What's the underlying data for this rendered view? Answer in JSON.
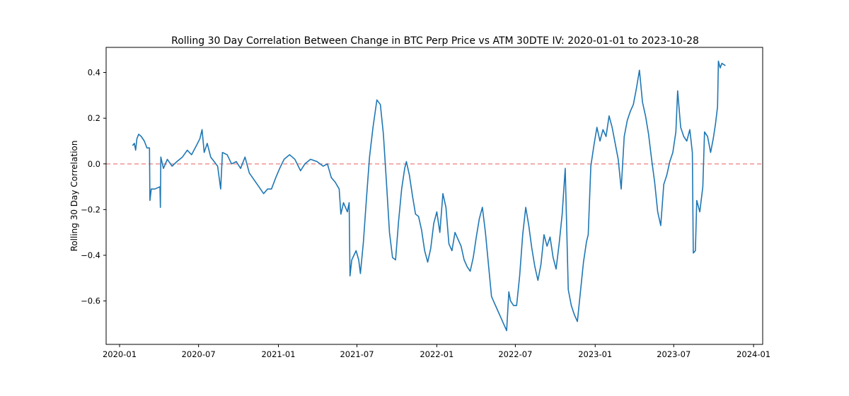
{
  "chart_data": {
    "type": "line",
    "title": "Rolling 30 Day Correlation Between Change in BTC Perp Price vs ATM 30DTE IV: 2020-01-01 to 2023-10-28",
    "xlabel": "",
    "ylabel": "Rolling 30 Day Correlation",
    "x_is_dates": true,
    "xlim": [
      "2019-12-01",
      "2024-01-22"
    ],
    "ylim": [
      -0.79,
      0.51
    ],
    "x_ticks": [
      {
        "value": "2020-01-01",
        "label": "2020-01"
      },
      {
        "value": "2020-07-01",
        "label": "2020-07"
      },
      {
        "value": "2021-01-01",
        "label": "2021-01"
      },
      {
        "value": "2021-07-01",
        "label": "2021-07"
      },
      {
        "value": "2022-01-01",
        "label": "2022-01"
      },
      {
        "value": "2022-07-01",
        "label": "2022-07"
      },
      {
        "value": "2023-01-01",
        "label": "2023-01"
      },
      {
        "value": "2023-07-01",
        "label": "2023-07"
      },
      {
        "value": "2024-01-01",
        "label": "2024-01"
      }
    ],
    "y_ticks": [
      {
        "value": -0.6,
        "label": "−0.6"
      },
      {
        "value": -0.4,
        "label": "−0.4"
      },
      {
        "value": -0.2,
        "label": "−0.2"
      },
      {
        "value": 0.0,
        "label": "0.0"
      },
      {
        "value": 0.2,
        "label": "0.2"
      },
      {
        "value": 0.4,
        "label": "0.4"
      }
    ],
    "grid": false,
    "reference_line": {
      "y": 0.0,
      "color": "#ef8a8a",
      "style": "dashed"
    },
    "series": [
      {
        "color": "#1f77b4",
        "points": [
          [
            "2020-01-31",
            0.08
          ],
          [
            "2020-02-04",
            0.09
          ],
          [
            "2020-02-07",
            0.06
          ],
          [
            "2020-02-10",
            0.11
          ],
          [
            "2020-02-14",
            0.13
          ],
          [
            "2020-02-20",
            0.12
          ],
          [
            "2020-02-27",
            0.1
          ],
          [
            "2020-03-04",
            0.07
          ],
          [
            "2020-03-10",
            0.07
          ],
          [
            "2020-03-11",
            -0.16
          ],
          [
            "2020-03-14",
            -0.11
          ],
          [
            "2020-03-22",
            -0.11
          ],
          [
            "2020-04-03",
            -0.1
          ],
          [
            "2020-04-04",
            -0.19
          ],
          [
            "2020-04-05",
            0.03
          ],
          [
            "2020-04-11",
            -0.02
          ],
          [
            "2020-04-20",
            0.02
          ],
          [
            "2020-05-01",
            -0.01
          ],
          [
            "2020-05-12",
            0.01
          ],
          [
            "2020-05-25",
            0.03
          ],
          [
            "2020-06-05",
            0.06
          ],
          [
            "2020-06-15",
            0.04
          ],
          [
            "2020-06-26",
            0.08
          ],
          [
            "2020-07-04",
            0.11
          ],
          [
            "2020-07-09",
            0.15
          ],
          [
            "2020-07-14",
            0.05
          ],
          [
            "2020-07-21",
            0.09
          ],
          [
            "2020-07-29",
            0.03
          ],
          [
            "2020-08-06",
            0.01
          ],
          [
            "2020-08-14",
            -0.01
          ],
          [
            "2020-08-21",
            -0.11
          ],
          [
            "2020-08-25",
            0.05
          ],
          [
            "2020-09-05",
            0.04
          ],
          [
            "2020-09-15",
            0.0
          ],
          [
            "2020-09-26",
            0.01
          ],
          [
            "2020-10-06",
            -0.02
          ],
          [
            "2020-10-16",
            0.03
          ],
          [
            "2020-10-26",
            -0.04
          ],
          [
            "2020-11-06",
            -0.07
          ],
          [
            "2020-11-17",
            -0.1
          ],
          [
            "2020-11-28",
            -0.13
          ],
          [
            "2020-12-07",
            -0.11
          ],
          [
            "2020-12-16",
            -0.11
          ],
          [
            "2020-12-26",
            -0.06
          ],
          [
            "2021-01-04",
            -0.02
          ],
          [
            "2021-01-14",
            0.02
          ],
          [
            "2021-01-27",
            0.04
          ],
          [
            "2021-02-08",
            0.02
          ],
          [
            "2021-02-21",
            -0.03
          ],
          [
            "2021-03-03",
            0.0
          ],
          [
            "2021-03-16",
            0.02
          ],
          [
            "2021-03-31",
            0.01
          ],
          [
            "2021-04-14",
            -0.01
          ],
          [
            "2021-04-24",
            0.0
          ],
          [
            "2021-05-03",
            -0.06
          ],
          [
            "2021-05-12",
            -0.08
          ],
          [
            "2021-05-21",
            -0.11
          ],
          [
            "2021-05-25",
            -0.22
          ],
          [
            "2021-05-31",
            -0.17
          ],
          [
            "2021-06-09",
            -0.21
          ],
          [
            "2021-06-13",
            -0.17
          ],
          [
            "2021-06-15",
            -0.49
          ],
          [
            "2021-06-19",
            -0.42
          ],
          [
            "2021-06-29",
            -0.38
          ],
          [
            "2021-07-05",
            -0.42
          ],
          [
            "2021-07-09",
            -0.48
          ],
          [
            "2021-07-16",
            -0.34
          ],
          [
            "2021-07-23",
            -0.15
          ],
          [
            "2021-07-30",
            0.03
          ],
          [
            "2021-08-07",
            0.16
          ],
          [
            "2021-08-16",
            0.28
          ],
          [
            "2021-08-24",
            0.26
          ],
          [
            "2021-08-31",
            0.13
          ],
          [
            "2021-09-07",
            -0.08
          ],
          [
            "2021-09-14",
            -0.3
          ],
          [
            "2021-09-21",
            -0.41
          ],
          [
            "2021-09-28",
            -0.42
          ],
          [
            "2021-10-05",
            -0.25
          ],
          [
            "2021-10-12",
            -0.11
          ],
          [
            "2021-10-19",
            -0.02
          ],
          [
            "2021-10-23",
            0.01
          ],
          [
            "2021-10-30",
            -0.05
          ],
          [
            "2021-11-06",
            -0.14
          ],
          [
            "2021-11-13",
            -0.22
          ],
          [
            "2021-11-20",
            -0.23
          ],
          [
            "2021-11-27",
            -0.29
          ],
          [
            "2021-12-04",
            -0.38
          ],
          [
            "2021-12-11",
            -0.43
          ],
          [
            "2021-12-18",
            -0.37
          ],
          [
            "2021-12-25",
            -0.26
          ],
          [
            "2022-01-01",
            -0.21
          ],
          [
            "2022-01-08",
            -0.3
          ],
          [
            "2022-01-15",
            -0.13
          ],
          [
            "2022-01-22",
            -0.19
          ],
          [
            "2022-01-29",
            -0.35
          ],
          [
            "2022-02-05",
            -0.38
          ],
          [
            "2022-02-12",
            -0.3
          ],
          [
            "2022-02-19",
            -0.33
          ],
          [
            "2022-02-26",
            -0.36
          ],
          [
            "2022-03-05",
            -0.42
          ],
          [
            "2022-03-12",
            -0.45
          ],
          [
            "2022-03-19",
            -0.47
          ],
          [
            "2022-03-26",
            -0.41
          ],
          [
            "2022-04-02",
            -0.32
          ],
          [
            "2022-04-09",
            -0.24
          ],
          [
            "2022-04-16",
            -0.19
          ],
          [
            "2022-04-23",
            -0.3
          ],
          [
            "2022-04-30",
            -0.44
          ],
          [
            "2022-05-07",
            -0.58
          ],
          [
            "2022-05-14",
            -0.61
          ],
          [
            "2022-05-21",
            -0.64
          ],
          [
            "2022-05-28",
            -0.67
          ],
          [
            "2022-06-04",
            -0.7
          ],
          [
            "2022-06-11",
            -0.73
          ],
          [
            "2022-06-16",
            -0.56
          ],
          [
            "2022-06-20",
            -0.6
          ],
          [
            "2022-06-27",
            -0.62
          ],
          [
            "2022-07-04",
            -0.62
          ],
          [
            "2022-07-11",
            -0.49
          ],
          [
            "2022-07-18",
            -0.31
          ],
          [
            "2022-07-25",
            -0.19
          ],
          [
            "2022-08-01",
            -0.27
          ],
          [
            "2022-08-08",
            -0.37
          ],
          [
            "2022-08-15",
            -0.45
          ],
          [
            "2022-08-22",
            -0.51
          ],
          [
            "2022-08-29",
            -0.44
          ],
          [
            "2022-09-05",
            -0.31
          ],
          [
            "2022-09-12",
            -0.36
          ],
          [
            "2022-09-19",
            -0.32
          ],
          [
            "2022-09-26",
            -0.41
          ],
          [
            "2022-10-03",
            -0.46
          ],
          [
            "2022-10-10",
            -0.35
          ],
          [
            "2022-10-17",
            -0.22
          ],
          [
            "2022-10-24",
            -0.02
          ],
          [
            "2022-10-31",
            -0.55
          ],
          [
            "2022-11-07",
            -0.62
          ],
          [
            "2022-11-14",
            -0.66
          ],
          [
            "2022-11-21",
            -0.69
          ],
          [
            "2022-11-28",
            -0.56
          ],
          [
            "2022-12-05",
            -0.43
          ],
          [
            "2022-12-12",
            -0.34
          ],
          [
            "2022-12-16",
            -0.31
          ],
          [
            "2022-12-22",
            -0.01
          ],
          [
            "2022-12-29",
            0.08
          ],
          [
            "2023-01-05",
            0.16
          ],
          [
            "2023-01-12",
            0.1
          ],
          [
            "2023-01-19",
            0.15
          ],
          [
            "2023-01-26",
            0.12
          ],
          [
            "2023-02-02",
            0.21
          ],
          [
            "2023-02-09",
            0.16
          ],
          [
            "2023-02-16",
            0.09
          ],
          [
            "2023-02-23",
            0.02
          ],
          [
            "2023-03-02",
            -0.11
          ],
          [
            "2023-03-09",
            0.12
          ],
          [
            "2023-03-16",
            0.19
          ],
          [
            "2023-03-23",
            0.23
          ],
          [
            "2023-03-30",
            0.26
          ],
          [
            "2023-04-06",
            0.33
          ],
          [
            "2023-04-13",
            0.41
          ],
          [
            "2023-04-20",
            0.27
          ],
          [
            "2023-04-27",
            0.21
          ],
          [
            "2023-05-04",
            0.13
          ],
          [
            "2023-05-11",
            0.02
          ],
          [
            "2023-05-18",
            -0.08
          ],
          [
            "2023-05-25",
            -0.21
          ],
          [
            "2023-06-01",
            -0.27
          ],
          [
            "2023-06-08",
            -0.09
          ],
          [
            "2023-06-15",
            -0.05
          ],
          [
            "2023-06-22",
            0.01
          ],
          [
            "2023-06-29",
            0.05
          ],
          [
            "2023-07-06",
            0.14
          ],
          [
            "2023-07-10",
            0.32
          ],
          [
            "2023-07-17",
            0.16
          ],
          [
            "2023-07-24",
            0.12
          ],
          [
            "2023-07-31",
            0.1
          ],
          [
            "2023-08-07",
            0.15
          ],
          [
            "2023-08-13",
            0.05
          ],
          [
            "2023-08-15",
            -0.39
          ],
          [
            "2023-08-20",
            -0.38
          ],
          [
            "2023-08-23",
            -0.16
          ],
          [
            "2023-08-30",
            -0.21
          ],
          [
            "2023-09-06",
            -0.1
          ],
          [
            "2023-09-10",
            0.14
          ],
          [
            "2023-09-17",
            0.12
          ],
          [
            "2023-09-24",
            0.05
          ],
          [
            "2023-09-30",
            0.11
          ],
          [
            "2023-10-05",
            0.17
          ],
          [
            "2023-10-10",
            0.25
          ],
          [
            "2023-10-12",
            0.45
          ],
          [
            "2023-10-16",
            0.42
          ],
          [
            "2023-10-20",
            0.44
          ],
          [
            "2023-10-28",
            0.43
          ]
        ]
      }
    ]
  }
}
